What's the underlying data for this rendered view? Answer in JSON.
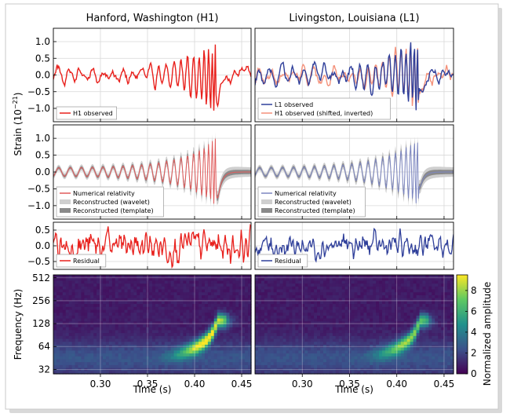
{
  "chart_data": {
    "type": "line",
    "titles": [
      "Hanford, Washington (H1)",
      "Livingston, Louisiana (L1)"
    ],
    "ylabel_strain": "Strain (10",
    "ylabel_strain_exp": "−21",
    "ylabel_strain_close": ")",
    "ylabel_freq": "Frequency (Hz)",
    "xlabel": "Time (s)",
    "colorbar_label": "Normalized amplitude",
    "xlim": [
      0.25,
      0.46
    ],
    "x_ticks": [
      "0.30",
      "0.35",
      "0.40",
      "0.45"
    ],
    "x_tick_values": [
      0.3,
      0.35,
      0.4,
      0.45
    ],
    "row1": {
      "ylim": [
        -1.4,
        1.4
      ],
      "y_ticks": [
        "1.0",
        "0.5",
        "0.0",
        "−0.5",
        "−1.0"
      ],
      "y_tick_values": [
        1.0,
        0.5,
        0.0,
        -0.5,
        -1.0
      ],
      "legend_h1": [
        "H1 observed"
      ],
      "legend_l1": [
        "L1 observed",
        "H1 observed (shifted, inverted)"
      ]
    },
    "row2": {
      "ylim": [
        -1.4,
        1.4
      ],
      "y_ticks": [
        "1.0",
        "0.5",
        "0.0",
        "−0.5",
        "−1.0"
      ],
      "y_tick_values": [
        1.0,
        0.5,
        0.0,
        -0.5,
        -1.0
      ],
      "legend": [
        "Numerical relativity",
        "Reconstructed (wavelet)",
        "Reconstructed (template)"
      ]
    },
    "row3": {
      "ylim": [
        -0.75,
        0.75
      ],
      "y_ticks": [
        "0.5",
        "0.0",
        "−0.5"
      ],
      "y_tick_values": [
        0.5,
        0.0,
        -0.5
      ],
      "legend": [
        "Residual"
      ]
    },
    "row4": {
      "y_scale": "log2",
      "ylim": [
        28,
        560
      ],
      "y_ticks": [
        "512",
        "256",
        "128",
        "64",
        "32"
      ],
      "y_tick_values": [
        512,
        256,
        128,
        64,
        32
      ]
    },
    "colorbar": {
      "range": [
        0,
        9.5
      ],
      "ticks": [
        "8",
        "6",
        "4",
        "2",
        "0"
      ],
      "tick_values": [
        8,
        6,
        4,
        2,
        0
      ]
    },
    "series_colors": {
      "h1": "#e8201c",
      "l1": "#2f3f9a",
      "h1_shifted": "#f4917a",
      "nr_h1": "#e05a5a",
      "nr_l1": "#7c86c0",
      "wavelet_band": "#cfcfcf",
      "template_band": "#8a8a8a",
      "grid": "#d8d8d8"
    },
    "grid": true,
    "legend_placement": "lower-left"
  }
}
